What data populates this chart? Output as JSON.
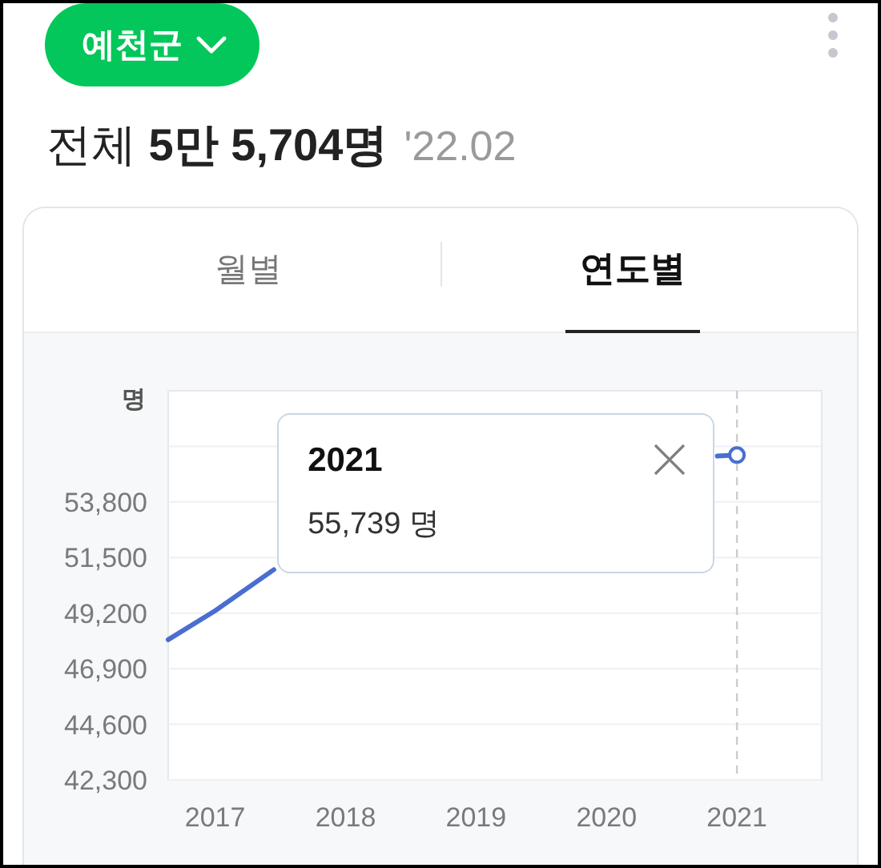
{
  "chart_data": {
    "type": "line",
    "title": "예천군",
    "subtitle": "전체 **5만 5,704명**",
    "ylabel": "명",
    "annotations": [
      "'22.02",
      "월별",
      "연도별",
      "2021",
      "55,739 명"
    ],
    "x": [
      2016.64,
      2017,
      2017.45,
      2018,
      2019,
      2020,
      2020.85,
      2021
    ],
    "values": [
      48100,
      49300,
      51000,
      null,
      null,
      null,
      55700,
      55739
    ],
    "color": "#4a6ed0",
    "xlim": [
      2016.64,
      2021.65
    ],
    "ylim": [
      42300,
      58400
    ],
    "xticks": [
      2017,
      2018,
      2019,
      2020,
      2021
    ],
    "yticks": [
      {
        "value": 42300,
        "label": "42,300"
      },
      {
        "value": 44600,
        "label": "44,600"
      },
      {
        "value": 46900,
        "label": "46,900"
      },
      {
        "value": 49200,
        "label": "49,200"
      },
      {
        "value": 51500,
        "label": "51,500"
      },
      {
        "value": 53800,
        "label": "53,800"
      },
      {
        "value": 56100,
        "label": null
      }
    ],
    "ref_lines": [
      {
        "axis": "x",
        "value": 2021,
        "color": "#cccccc",
        "line_style": "dashed"
      }
    ],
    "grid": "y"
  }
}
